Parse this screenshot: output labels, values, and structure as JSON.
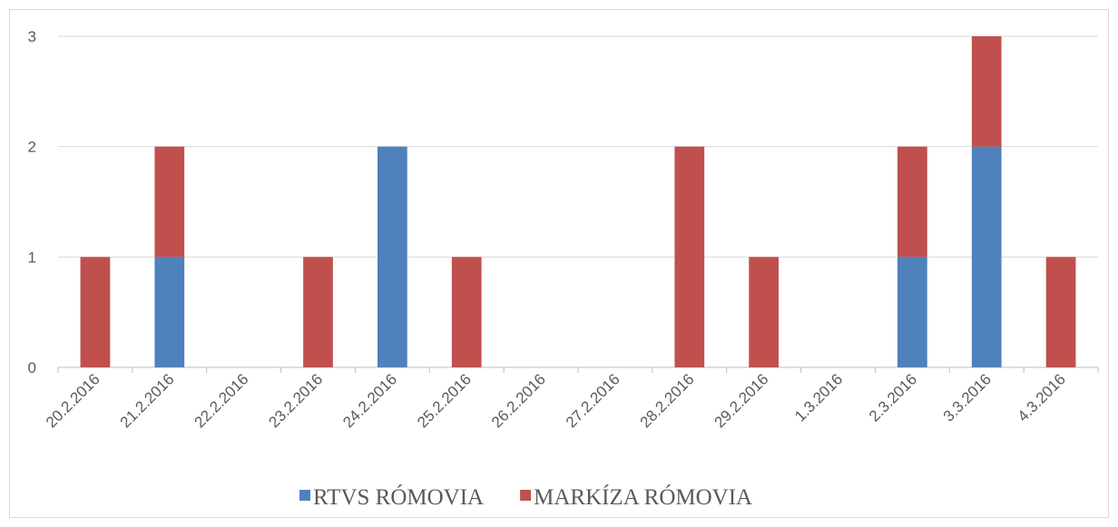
{
  "chart_data": {
    "type": "bar",
    "stacked": true,
    "categories": [
      "20.2.2016",
      "21.2.2016",
      "22.2.2016",
      "23.2.2016",
      "24.2.2016",
      "25.2.2016",
      "26.2.2016",
      "27.2.2016",
      "28.2.2016",
      "29.2.2016",
      "1.3.2016",
      "2.3.2016",
      "3.3.2016",
      "4.3.2016"
    ],
    "series": [
      {
        "name": "RTVS RÓMOVIA",
        "color": "#4f81bd",
        "values": [
          0,
          1,
          0,
          0,
          2,
          0,
          0,
          0,
          0,
          0,
          0,
          1,
          2,
          0
        ]
      },
      {
        "name": "MARKÍZA RÓMOVIA",
        "color": "#c0504d",
        "values": [
          1,
          1,
          0,
          1,
          0,
          1,
          0,
          0,
          2,
          1,
          0,
          1,
          1,
          1
        ]
      }
    ],
    "ylim": [
      0,
      3
    ],
    "yticks": [
      0,
      1,
      2,
      3
    ],
    "grid": true,
    "legend": "bottom"
  }
}
